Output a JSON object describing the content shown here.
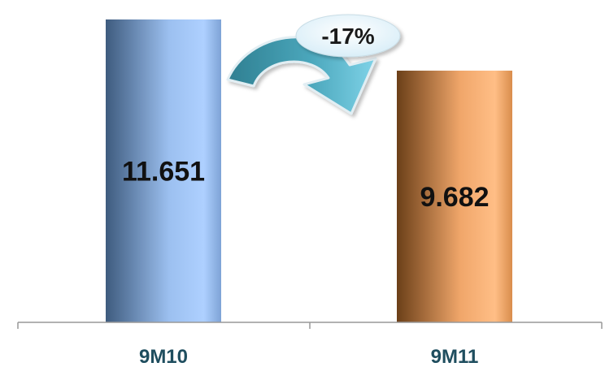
{
  "chart_data": {
    "type": "bar",
    "categories": [
      "9M10",
      "9M11"
    ],
    "values": [
      11.651,
      9.682
    ],
    "data_labels": [
      "11.651",
      "9.682"
    ],
    "annotation": "-17%",
    "ylim": [
      0,
      12.4
    ],
    "grid": false,
    "legend": "none",
    "colors": {
      "bar_1_dark": "#3e5b7e",
      "bar_1_light": "#aed0ff",
      "bar_2_dark": "#6b3f18",
      "bar_2_light": "#ffbe86",
      "arrow_dark": "#2f7f91",
      "arrow_light": "#7fd3e8",
      "badge": "#e7f4fb",
      "category_text": "#1f4e5f",
      "axis": "#999999"
    }
  }
}
